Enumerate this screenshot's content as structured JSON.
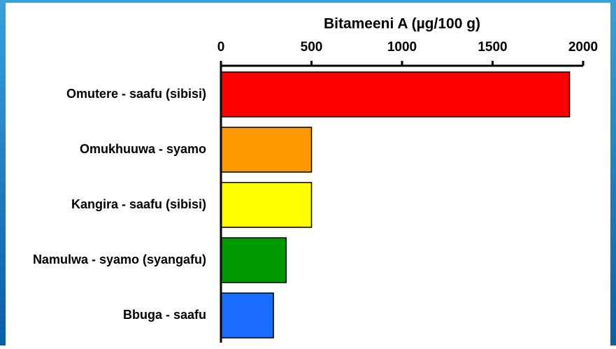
{
  "chart_data": {
    "type": "barh",
    "title": "Bitameeni A (µg/100 g)",
    "categories": [
      "Omutere - saafu (sibisi)",
      "Omukhuuwa - syamo",
      "Kangira - saafu (sibisi)",
      "Namulwa - syamo (syangafu)",
      "Bbuga - saafu"
    ],
    "values": [
      1925,
      500,
      500,
      360,
      290
    ],
    "colors": [
      "#ff0000",
      "#ff9900",
      "#ffff00",
      "#009900",
      "#1a6cff"
    ],
    "xlim": [
      0,
      2000
    ],
    "xticks": [
      0,
      500,
      1000,
      1500,
      2000
    ]
  }
}
